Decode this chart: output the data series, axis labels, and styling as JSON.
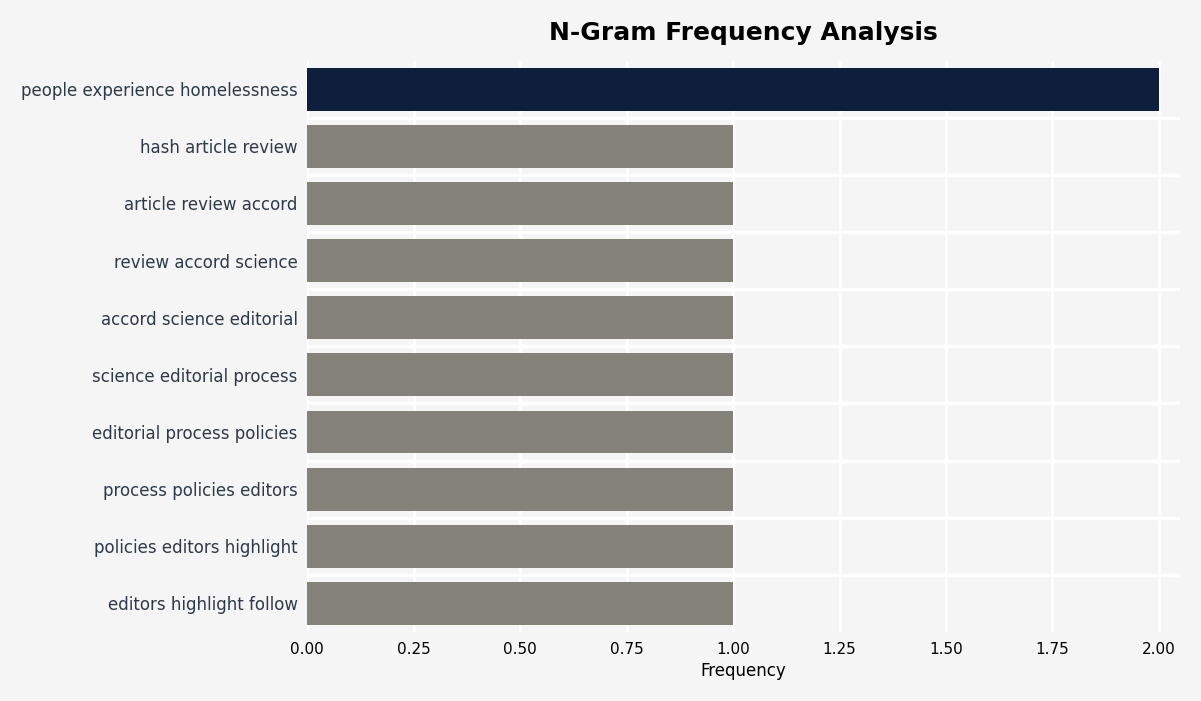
{
  "title": "N-Gram Frequency Analysis",
  "xlabel": "Frequency",
  "categories": [
    "editors highlight follow",
    "policies editors highlight",
    "process policies editors",
    "editorial process policies",
    "science editorial process",
    "accord science editorial",
    "review accord science",
    "article review accord",
    "hash article review",
    "people experience homelessness"
  ],
  "values": [
    1,
    1,
    1,
    1,
    1,
    1,
    1,
    1,
    1,
    2
  ],
  "bar_colors": [
    "#838178",
    "#838178",
    "#838178",
    "#838178",
    "#838178",
    "#838178",
    "#838178",
    "#838178",
    "#838178",
    "#0d1f3c"
  ],
  "xlim": [
    0,
    2.05
  ],
  "xticks": [
    0.0,
    0.25,
    0.5,
    0.75,
    1.0,
    1.25,
    1.5,
    1.75,
    2.0
  ],
  "xtick_labels": [
    "0.00",
    "0.25",
    "0.50",
    "0.75",
    "1.00",
    "1.25",
    "1.50",
    "1.75",
    "2.00"
  ],
  "background_color": "#f5f5f5",
  "title_fontsize": 18,
  "label_fontsize": 12,
  "tick_fontsize": 11,
  "bar_height": 0.75,
  "grid_color": "#ffffff",
  "ytick_color": "#2d3a4a"
}
